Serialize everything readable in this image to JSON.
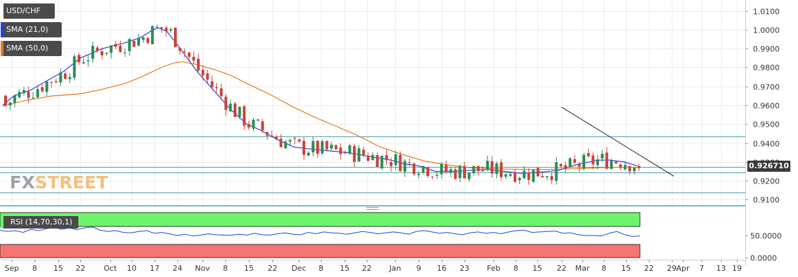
{
  "legend": {
    "symbol": "USD/CHF",
    "sma21": "SMA (21,0)",
    "sma50": "SMA (50,0)",
    "rsi": "RSI (14,70,30,1)"
  },
  "logo": {
    "part1": "FX",
    "part2": "STREET"
  },
  "last_price": "0.926710",
  "colors": {
    "up": "#2e8b57",
    "down": "#c9433b",
    "sma21": "#2a3fd9",
    "sma50": "#e07b22",
    "hline": "#4aa3a8",
    "trend": "#222222",
    "rsi": "#2a3fd9",
    "overbought": "#6cf56a",
    "oversold": "#f77474"
  },
  "chart_data": [
    {
      "type": "candlestick",
      "title": "USD/CHF",
      "x_range": [
        "Sep 1",
        "Mar 19"
      ],
      "ylim": [
        0.9065,
        1.0145
      ],
      "yticks": [
        "1.0100",
        "1.0000",
        "0.9900",
        "0.9800",
        "0.9700",
        "0.9600",
        "0.9500",
        "0.9400",
        "0.9300",
        "0.9200",
        "0.9100"
      ],
      "xticks": [
        "Sep",
        "8",
        "15",
        "22",
        "Oct",
        "10",
        "17",
        "24",
        "Nov",
        "8",
        "15",
        "22",
        "Dec",
        "8",
        "15",
        "22",
        "Jan",
        "9",
        "16",
        "23",
        "Feb",
        "8",
        "15",
        "22",
        "Mar",
        "8",
        "15",
        "22",
        "29",
        "Apr",
        "7",
        "13",
        "19"
      ],
      "support_resistance": [
        0.9435,
        0.9273,
        0.9245,
        0.9138,
        0.9068
      ],
      "trendline": {
        "from": [
          "Feb 21",
          0.959
        ],
        "to": [
          "Mar 23",
          0.9225
        ]
      },
      "series": [
        {
          "name": "SMA (21,0)",
          "points": [
            [
              0,
              0.96
            ],
            [
              10,
              0.965
            ],
            [
              25,
              0.968
            ],
            [
              40,
              0.973
            ],
            [
              55,
              0.978
            ],
            [
              70,
              0.985
            ],
            [
              90,
              0.99
            ],
            [
              110,
              0.993
            ],
            [
              125,
              0.996
            ],
            [
              134,
              0.9995
            ],
            [
              140,
              1.001
            ],
            [
              148,
              0.999
            ],
            [
              160,
              0.99
            ],
            [
              175,
              0.978
            ],
            [
              190,
              0.968
            ],
            [
              205,
              0.958
            ],
            [
              220,
              0.95
            ],
            [
              232,
              0.947
            ],
            [
              247,
              0.942
            ],
            [
              262,
              0.938
            ],
            [
              275,
              0.937
            ],
            [
              292,
              0.936
            ],
            [
              310,
              0.935
            ],
            [
              330,
              0.933
            ],
            [
              350,
              0.931
            ],
            [
              362,
              0.929
            ],
            [
              375,
              0.928
            ],
            [
              390,
              0.925
            ],
            [
              405,
              0.925
            ],
            [
              420,
              0.9255
            ],
            [
              437,
              0.926
            ],
            [
              452,
              0.925
            ],
            [
              467,
              0.924
            ],
            [
              482,
              0.9245
            ],
            [
              500,
              0.9255
            ],
            [
              520,
              0.929
            ],
            [
              537,
              0.931
            ],
            [
              547,
              0.931
            ],
            [
              560,
              0.93
            ],
            [
              572,
              0.928
            ]
          ]
        },
        {
          "name": "SMA (50,0)",
          "points": [
            [
              0,
              0.9595
            ],
            [
              20,
              0.9625
            ],
            [
              45,
              0.965
            ],
            [
              70,
              0.966
            ],
            [
              90,
              0.9685
            ],
            [
              110,
              0.9715
            ],
            [
              125,
              0.975
            ],
            [
              134,
              0.9775
            ],
            [
              145,
              0.9805
            ],
            [
              155,
              0.9825
            ],
            [
              162,
              0.983
            ],
            [
              175,
              0.9815
            ],
            [
              190,
              0.979
            ],
            [
              205,
              0.976
            ],
            [
              220,
              0.9715
            ],
            [
              240,
              0.966
            ],
            [
              262,
              0.959
            ],
            [
              280,
              0.954
            ],
            [
              300,
              0.949
            ],
            [
              320,
              0.944
            ],
            [
              340,
              0.938
            ],
            [
              360,
              0.934
            ],
            [
              380,
              0.9305
            ],
            [
              400,
              0.9285
            ],
            [
              420,
              0.927
            ],
            [
              440,
              0.9265
            ],
            [
              460,
              0.9262
            ],
            [
              480,
              0.926
            ],
            [
              500,
              0.9262
            ],
            [
              520,
              0.9265
            ],
            [
              540,
              0.927
            ],
            [
              560,
              0.9272
            ],
            [
              572,
              0.9272
            ]
          ]
        }
      ],
      "last": 0.92671
    },
    {
      "type": "line",
      "title": "RSI (14,70,30,1)",
      "ylim": [
        0,
        100
      ],
      "yticks": [
        "50.0000",
        "0.0000"
      ],
      "bands": {
        "overbought": 70,
        "oversold": 30
      },
      "series": [
        {
          "name": "RSI (14,70,30,1)",
          "values": [
            61,
            58,
            60,
            56,
            63,
            60,
            64,
            67,
            63,
            66,
            62,
            66,
            68,
            61,
            58,
            60,
            56,
            55,
            58,
            60,
            54,
            56,
            53,
            49,
            52,
            48,
            50,
            53,
            51,
            50,
            50,
            52,
            50,
            54,
            51,
            50,
            53,
            55,
            52,
            51,
            56,
            53,
            57,
            55,
            54,
            52,
            55,
            58,
            56,
            53,
            55,
            57,
            55,
            52,
            58,
            60,
            57,
            54,
            56,
            53,
            51,
            55,
            57,
            54,
            56,
            53,
            57,
            60,
            61,
            56,
            57,
            58,
            59,
            54,
            55,
            51,
            49,
            49,
            48,
            54,
            58,
            51,
            47,
            48
          ]
        }
      ]
    }
  ]
}
